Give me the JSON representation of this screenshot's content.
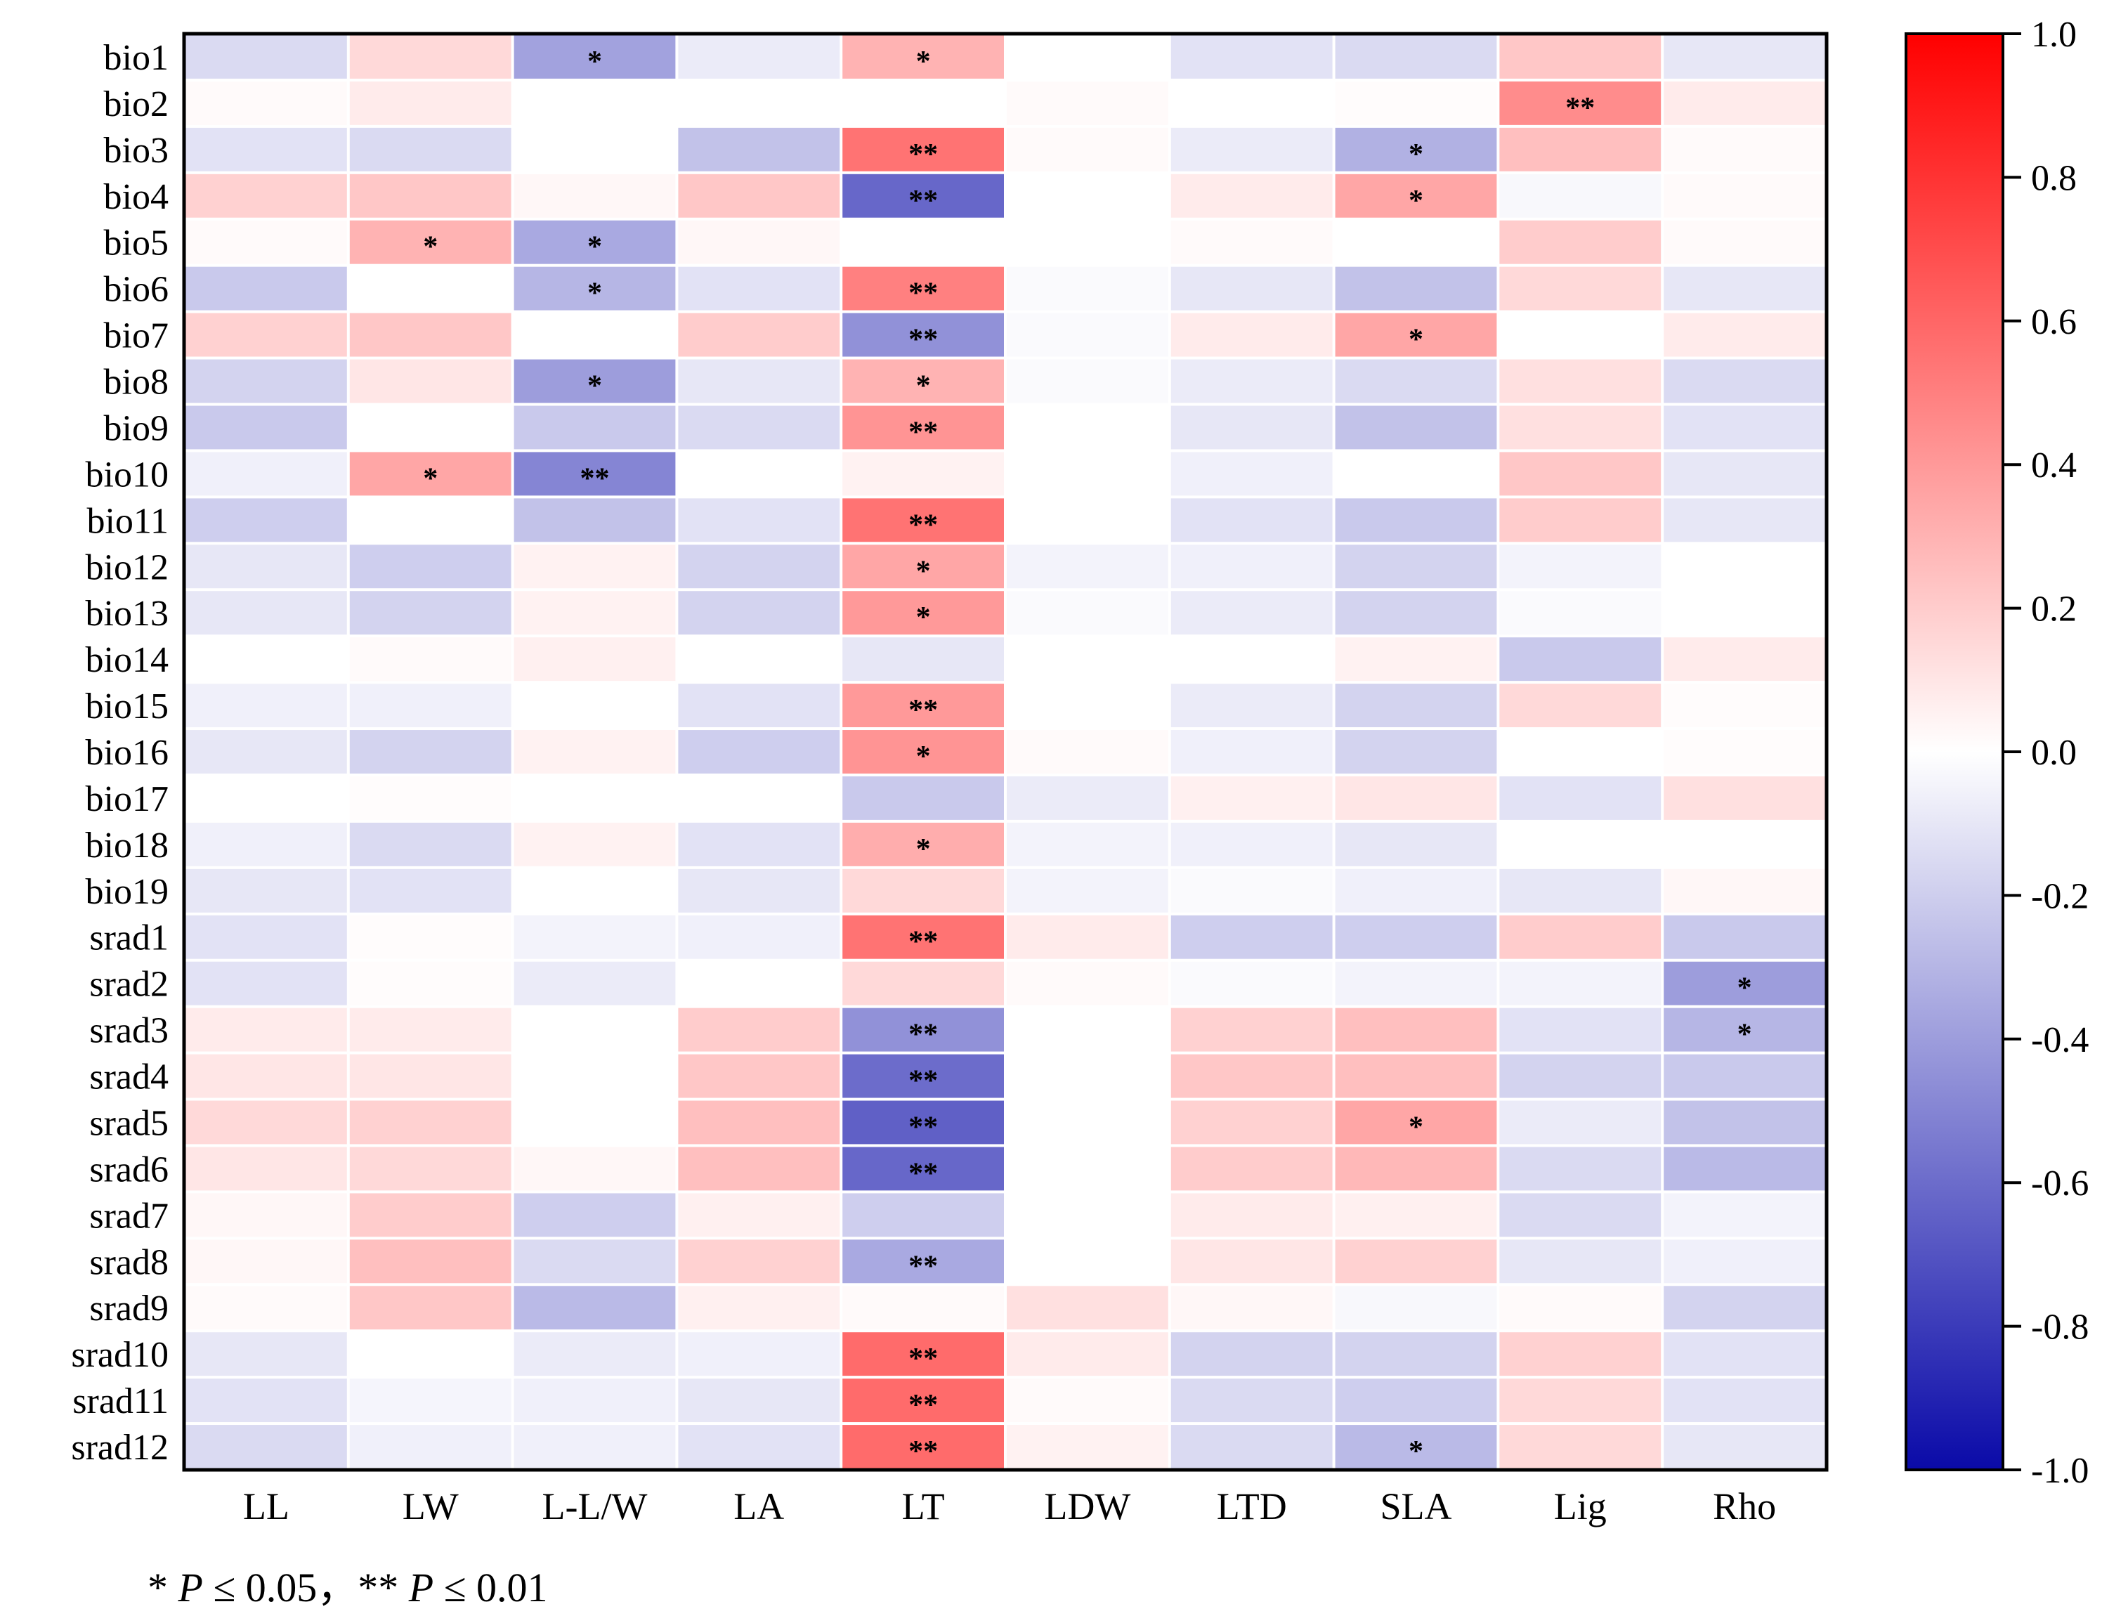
{
  "chart_data": {
    "type": "heatmap",
    "rows": [
      "bio1",
      "bio2",
      "bio3",
      "bio4",
      "bio5",
      "bio6",
      "bio7",
      "bio8",
      "bio9",
      "bio10",
      "bio11",
      "bio12",
      "bio13",
      "bio14",
      "bio15",
      "bio16",
      "bio17",
      "bio18",
      "bio19",
      "srad1",
      "srad2",
      "srad3",
      "srad4",
      "srad5",
      "srad6",
      "srad7",
      "srad8",
      "srad9",
      "srad10",
      "srad11",
      "srad12"
    ],
    "columns": [
      "LL",
      "LW",
      "L-L/W",
      "LA",
      "LT",
      "LDW",
      "LTD",
      "SLA",
      "Lig",
      "Rho"
    ],
    "values": [
      [
        -0.15,
        0.15,
        -0.38,
        -0.08,
        0.3,
        0.0,
        -0.12,
        -0.15,
        0.22,
        -0.1
      ],
      [
        0.02,
        0.08,
        0.0,
        0.0,
        0.0,
        0.02,
        0.0,
        0.01,
        0.45,
        0.08
      ],
      [
        -0.12,
        -0.15,
        0.0,
        -0.25,
        0.55,
        0.02,
        -0.08,
        -0.32,
        0.25,
        0.02
      ],
      [
        0.18,
        0.22,
        0.03,
        0.22,
        -0.62,
        0.0,
        0.08,
        0.35,
        -0.03,
        0.02
      ],
      [
        0.02,
        0.3,
        -0.35,
        0.03,
        0.0,
        0.0,
        0.02,
        0.0,
        0.2,
        0.02
      ],
      [
        -0.22,
        0.0,
        -0.3,
        -0.12,
        0.5,
        -0.02,
        -0.1,
        -0.25,
        0.15,
        -0.1
      ],
      [
        0.18,
        0.22,
        0.0,
        0.2,
        -0.45,
        -0.02,
        0.08,
        0.35,
        0.0,
        0.08
      ],
      [
        -0.18,
        0.1,
        -0.4,
        -0.1,
        0.3,
        -0.02,
        -0.08,
        -0.15,
        0.12,
        -0.15
      ],
      [
        -0.22,
        0.0,
        -0.22,
        -0.15,
        0.42,
        0.0,
        -0.1,
        -0.25,
        0.12,
        -0.12
      ],
      [
        -0.06,
        0.35,
        -0.5,
        0.0,
        0.05,
        0.0,
        -0.06,
        0.0,
        0.22,
        -0.1
      ],
      [
        -0.2,
        0.0,
        -0.25,
        -0.12,
        0.55,
        0.0,
        -0.12,
        -0.22,
        0.2,
        -0.1
      ],
      [
        -0.1,
        -0.2,
        0.05,
        -0.18,
        0.35,
        -0.05,
        -0.06,
        -0.18,
        -0.05,
        0.0
      ],
      [
        -0.1,
        -0.18,
        0.05,
        -0.18,
        0.4,
        -0.02,
        -0.08,
        -0.18,
        -0.02,
        0.0
      ],
      [
        0.0,
        0.02,
        0.06,
        0.0,
        -0.1,
        0.0,
        0.0,
        0.05,
        -0.22,
        0.08
      ],
      [
        -0.06,
        -0.06,
        0.0,
        -0.12,
        0.4,
        0.0,
        -0.08,
        -0.18,
        0.15,
        0.01
      ],
      [
        -0.1,
        -0.18,
        0.05,
        -0.2,
        0.42,
        0.02,
        -0.06,
        -0.18,
        0.0,
        0.01
      ],
      [
        0.0,
        0.01,
        0.0,
        0.0,
        -0.22,
        -0.08,
        0.06,
        0.1,
        -0.12,
        0.12
      ],
      [
        -0.06,
        -0.15,
        0.05,
        -0.12,
        0.32,
        -0.05,
        -0.06,
        -0.1,
        0.0,
        0.0
      ],
      [
        -0.1,
        -0.12,
        0.0,
        -0.1,
        0.15,
        -0.05,
        -0.02,
        -0.06,
        -0.1,
        0.03
      ],
      [
        -0.12,
        0.01,
        -0.05,
        -0.06,
        0.55,
        0.08,
        -0.2,
        -0.2,
        0.2,
        -0.22
      ],
      [
        -0.12,
        0.01,
        -0.08,
        0.0,
        0.15,
        0.02,
        -0.02,
        -0.05,
        -0.05,
        -0.4
      ],
      [
        0.08,
        0.08,
        0.0,
        0.2,
        -0.45,
        0.0,
        0.18,
        0.25,
        -0.12,
        -0.3
      ],
      [
        0.1,
        0.1,
        0.0,
        0.22,
        -0.6,
        0.0,
        0.22,
        0.25,
        -0.18,
        -0.22
      ],
      [
        0.15,
        0.18,
        0.0,
        0.25,
        -0.65,
        0.0,
        0.18,
        0.35,
        -0.08,
        -0.25
      ],
      [
        0.1,
        0.15,
        0.03,
        0.25,
        -0.62,
        0.0,
        0.2,
        0.28,
        -0.15,
        -0.28
      ],
      [
        0.03,
        0.2,
        -0.2,
        0.06,
        -0.2,
        0.0,
        0.08,
        0.06,
        -0.15,
        -0.05
      ],
      [
        0.03,
        0.25,
        -0.15,
        0.18,
        -0.35,
        0.0,
        0.1,
        0.18,
        -0.1,
        -0.06
      ],
      [
        0.02,
        0.22,
        -0.28,
        0.06,
        0.02,
        0.12,
        0.03,
        -0.03,
        0.02,
        -0.18
      ],
      [
        -0.1,
        0.0,
        -0.08,
        -0.06,
        0.58,
        0.08,
        -0.18,
        -0.18,
        0.18,
        -0.12
      ],
      [
        -0.12,
        -0.04,
        -0.06,
        -0.1,
        0.58,
        0.02,
        -0.15,
        -0.2,
        0.15,
        -0.12
      ],
      [
        -0.15,
        -0.06,
        -0.06,
        -0.12,
        0.58,
        0.05,
        -0.15,
        -0.28,
        0.15,
        -0.1
      ]
    ],
    "significance": [
      [
        "",
        "",
        "*",
        "",
        "*",
        "",
        "",
        "",
        "",
        ""
      ],
      [
        "",
        "",
        "",
        "",
        "",
        "",
        "",
        "",
        "**",
        ""
      ],
      [
        "",
        "",
        "",
        "",
        "**",
        "",
        "",
        "*",
        "",
        ""
      ],
      [
        "",
        "",
        "",
        "",
        "**",
        "",
        "",
        "*",
        "",
        ""
      ],
      [
        "",
        "*",
        "*",
        "",
        "",
        "",
        "",
        "",
        "",
        ""
      ],
      [
        "",
        "",
        "*",
        "",
        "**",
        "",
        "",
        "",
        "",
        ""
      ],
      [
        "",
        "",
        "",
        "",
        "**",
        "",
        "",
        "*",
        "",
        ""
      ],
      [
        "",
        "",
        "*",
        "",
        "*",
        "",
        "",
        "",
        "",
        ""
      ],
      [
        "",
        "",
        "",
        "",
        "**",
        "",
        "",
        "",
        "",
        ""
      ],
      [
        "",
        "*",
        "**",
        "",
        "",
        "",
        "",
        "",
        "",
        ""
      ],
      [
        "",
        "",
        "",
        "",
        "**",
        "",
        "",
        "",
        "",
        ""
      ],
      [
        "",
        "",
        "",
        "",
        "*",
        "",
        "",
        "",
        "",
        ""
      ],
      [
        "",
        "",
        "",
        "",
        "*",
        "",
        "",
        "",
        "",
        ""
      ],
      [
        "",
        "",
        "",
        "",
        "",
        "",
        "",
        "",
        "",
        ""
      ],
      [
        "",
        "",
        "",
        "",
        "**",
        "",
        "",
        "",
        "",
        ""
      ],
      [
        "",
        "",
        "",
        "",
        "*",
        "",
        "",
        "",
        "",
        ""
      ],
      [
        "",
        "",
        "",
        "",
        "",
        "",
        "",
        "",
        "",
        ""
      ],
      [
        "",
        "",
        "",
        "",
        "*",
        "",
        "",
        "",
        "",
        ""
      ],
      [
        "",
        "",
        "",
        "",
        "",
        "",
        "",
        "",
        "",
        ""
      ],
      [
        "",
        "",
        "",
        "",
        "**",
        "",
        "",
        "",
        "",
        ""
      ],
      [
        "",
        "",
        "",
        "",
        "",
        "",
        "",
        "",
        "",
        "*"
      ],
      [
        "",
        "",
        "",
        "",
        "**",
        "",
        "",
        "",
        "",
        "*"
      ],
      [
        "",
        "",
        "",
        "",
        "**",
        "",
        "",
        "",
        "",
        ""
      ],
      [
        "",
        "",
        "",
        "",
        "**",
        "",
        "",
        "*",
        "",
        ""
      ],
      [
        "",
        "",
        "",
        "",
        "**",
        "",
        "",
        "",
        "",
        ""
      ],
      [
        "",
        "",
        "",
        "",
        "",
        "",
        "",
        "",
        "",
        ""
      ],
      [
        "",
        "",
        "",
        "",
        "**",
        "",
        "",
        "",
        "",
        ""
      ],
      [
        "",
        "",
        "",
        "",
        "",
        "",
        "",
        "",
        "",
        ""
      ],
      [
        "",
        "",
        "",
        "",
        "**",
        "",
        "",
        "",
        "",
        ""
      ],
      [
        "",
        "",
        "",
        "",
        "**",
        "",
        "",
        "",
        "",
        ""
      ],
      [
        "",
        "",
        "",
        "",
        "**",
        "",
        "",
        "*",
        "",
        ""
      ]
    ],
    "colorbar": {
      "min": -1.0,
      "max": 1.0,
      "ticks": [
        1.0,
        0.8,
        0.6,
        0.4,
        0.2,
        0.0,
        -0.2,
        -0.4,
        -0.6,
        -0.8,
        -1.0
      ],
      "tick_labels": [
        "1.0",
        "0.8",
        "0.6",
        "0.4",
        "0.2",
        "0.0",
        "-0.2",
        "-0.4",
        "-0.6",
        "-0.8",
        "-1.0"
      ],
      "colors": {
        "low": "#0a0aa8",
        "mid": "#ffffff",
        "high": "#ff0000"
      }
    },
    "footnote": {
      "star1": "* ",
      "p1": "P",
      "t1": " ≤ 0.05，** ",
      "p2": "P",
      "t2": " ≤ 0.01"
    }
  }
}
